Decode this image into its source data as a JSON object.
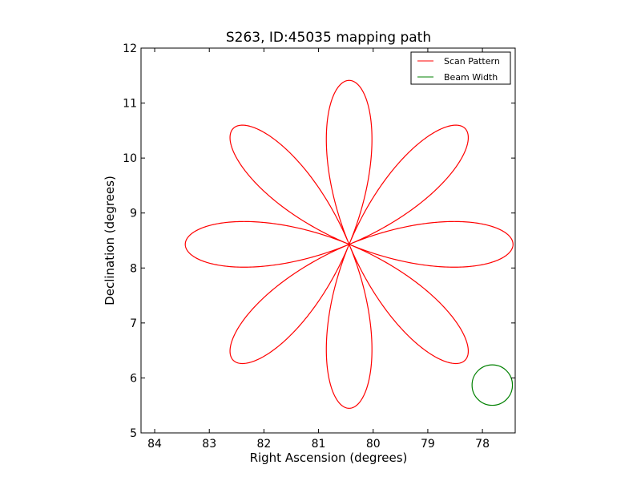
{
  "chart_data": {
    "type": "line",
    "title": "S263, ID:45035 mapping path",
    "xlabel": "Right Ascension (degrees)",
    "ylabel": "Declination (degrees)",
    "xlim": [
      84.25,
      77.4
    ],
    "ylim": [
      5,
      12
    ],
    "xticks": [
      84,
      83,
      82,
      81,
      80,
      79,
      78
    ],
    "yticks": [
      5,
      6,
      7,
      8,
      9,
      10,
      11,
      12
    ],
    "grid": false,
    "legend_position": "upper right",
    "series": [
      {
        "name": "Scan Pattern",
        "kind": "rose_curve",
        "color": "#ff0000",
        "center": [
          80.44,
          8.43
        ],
        "petals": 8,
        "radius_deg": 3.0,
        "petal_angles_deg": [
          0,
          45,
          90,
          135,
          180,
          225,
          270,
          315
        ]
      },
      {
        "name": "Beam Width",
        "kind": "circle",
        "color": "#008000",
        "center": [
          77.82,
          5.87
        ],
        "radius_deg": 0.37
      }
    ]
  }
}
